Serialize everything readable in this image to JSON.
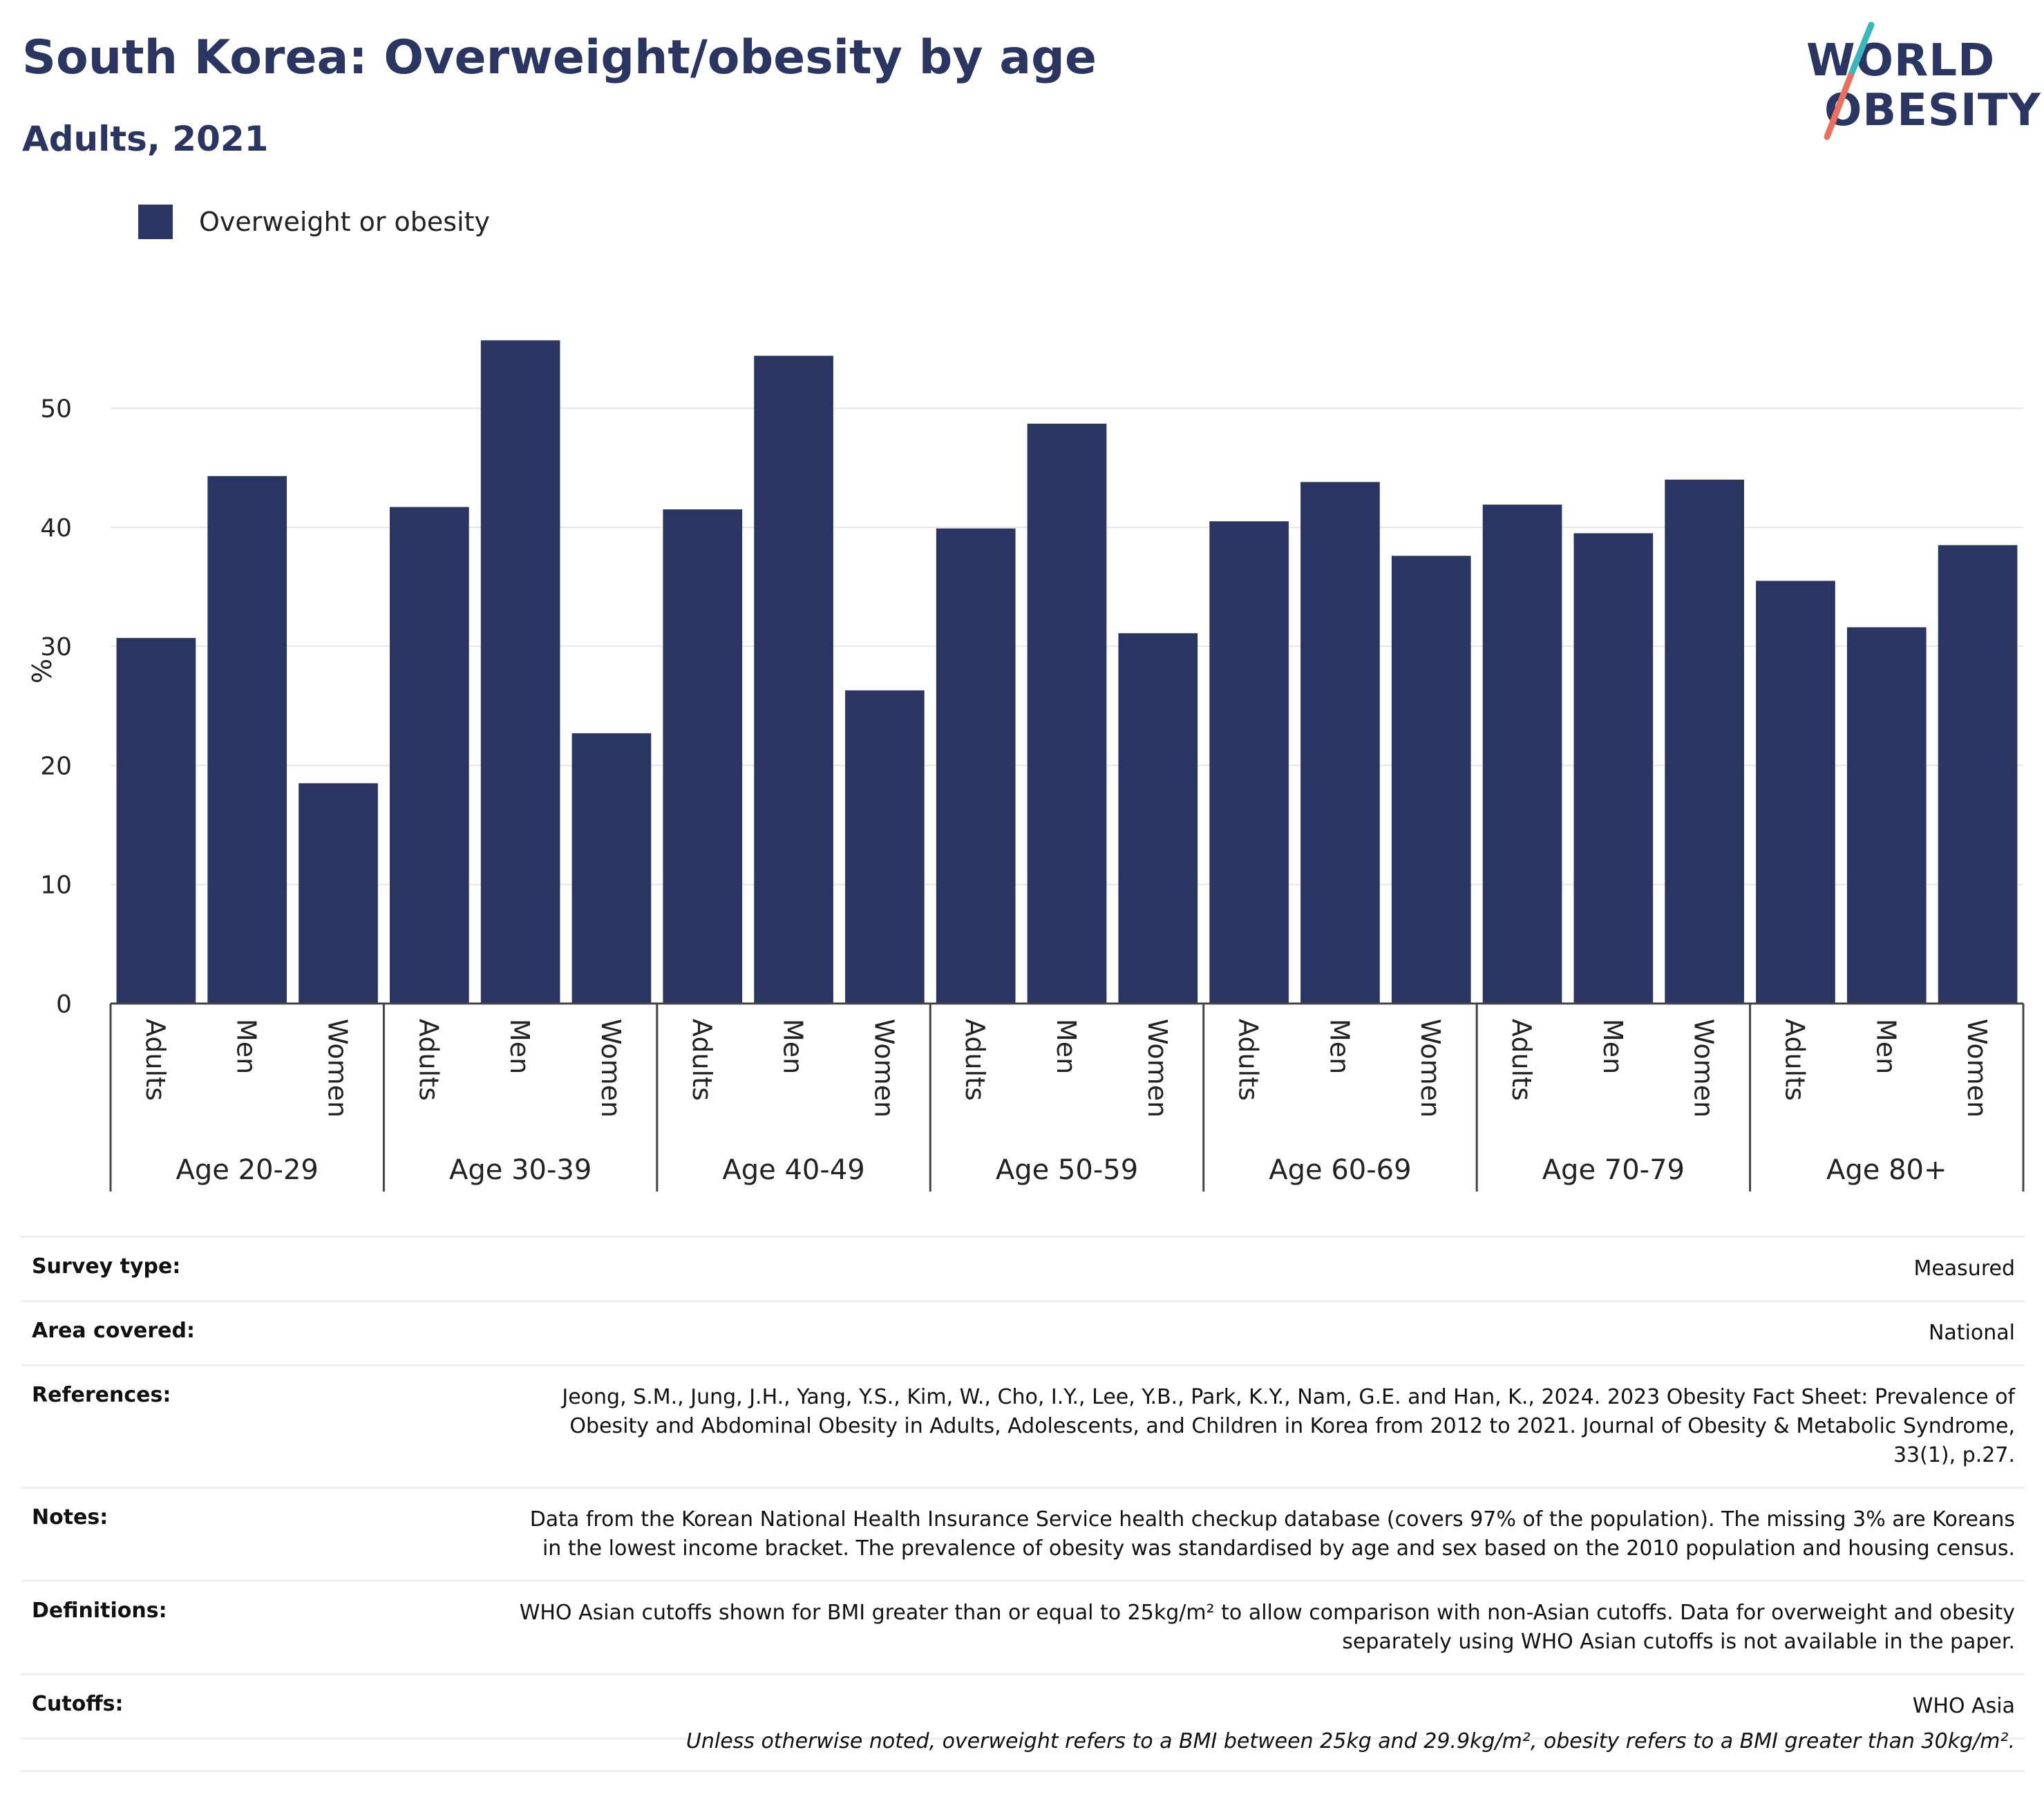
{
  "header": {
    "title": "South Korea: Overweight/obesity by age",
    "subtitle": "Adults, 2021"
  },
  "logo": {
    "line1": "WORLD",
    "line2": "OBESITY",
    "colors": {
      "navy": "#2b3561",
      "teal": "#3bb6bd",
      "coral": "#e8705f"
    }
  },
  "legend": {
    "label": "Overweight or obesity",
    "color": "#2b3561"
  },
  "chart_data": {
    "type": "bar",
    "ylabel": "%",
    "xlabel": "",
    "ylim": [
      0,
      57
    ],
    "yticks": [
      0,
      10,
      20,
      30,
      40,
      50
    ],
    "grid": true,
    "legend_position": "top-left",
    "bar_color": "#2b3561",
    "subcategories": [
      "Adults",
      "Men",
      "Women"
    ],
    "groups": [
      {
        "label": "Age 20-29",
        "values": [
          30.7,
          44.3,
          18.5
        ]
      },
      {
        "label": "Age 30-39",
        "values": [
          41.7,
          55.7,
          22.7
        ]
      },
      {
        "label": "Age 40-49",
        "values": [
          41.5,
          54.4,
          26.3
        ]
      },
      {
        "label": "Age 50-59",
        "values": [
          39.9,
          48.7,
          31.1
        ]
      },
      {
        "label": "Age 60-69",
        "values": [
          40.5,
          43.8,
          37.6
        ]
      },
      {
        "label": "Age 70-79",
        "values": [
          41.9,
          39.5,
          44.0
        ]
      },
      {
        "label": "Age 80+",
        "values": [
          35.5,
          31.6,
          38.5
        ]
      }
    ],
    "series": [
      {
        "name": "Overweight or obesity"
      }
    ]
  },
  "meta": {
    "rows": [
      {
        "key": "Survey type:",
        "value": "Measured"
      },
      {
        "key": "Area covered:",
        "value": "National"
      },
      {
        "key": "References:",
        "value": "Jeong, S.M., Jung, J.H., Yang, Y.S., Kim, W., Cho, I.Y., Lee, Y.B., Park, K.Y., Nam, G.E. and Han, K., 2024. 2023 Obesity Fact Sheet: Prevalence of Obesity and Abdominal Obesity in Adults, Adolescents, and Children in Korea from 2012 to 2021. Journal of Obesity & Metabolic Syndrome, 33(1), p.27."
      },
      {
        "key": "Notes:",
        "value": "Data from the Korean National Health Insurance Service health checkup database (covers 97% of the population). The missing 3% are Koreans in the lowest income bracket. The prevalence of obesity was standardised by age and sex based on the 2010 population and housing census."
      },
      {
        "key": "Definitions:",
        "value": "WHO Asian cutoffs shown for BMI greater than or equal to 25kg/m² to allow comparison with non-Asian cutoffs. Data for overweight and obesity separately using WHO Asian cutoffs is not available in the paper."
      },
      {
        "key": "Cutoffs:",
        "value": "WHO Asia"
      }
    ],
    "footnote": "Unless otherwise noted, overweight refers to a BMI between 25kg and 29.9kg/m², obesity refers to a BMI greater than 30kg/m²."
  }
}
